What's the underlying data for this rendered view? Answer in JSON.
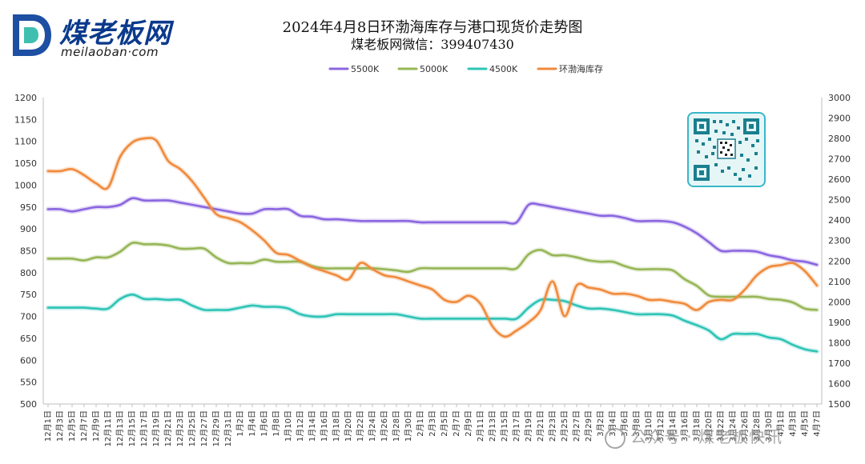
{
  "header": {
    "title": "2024年4月8日环渤海库存与港口现货价走势图",
    "subtitle": "煤老板网微信：399407430",
    "logo_text": "煤老板网",
    "logo_sub": "meilaoban·com"
  },
  "watermark": "公众号 · 煤老板快讯",
  "colors": {
    "s5500": "#8b66e0",
    "s5000": "#96b656",
    "s4500": "#2ec4b6",
    "stock": "#f08a3c"
  },
  "chart_data": {
    "type": "line",
    "title": "2024年4月8日环渤海库存与港口现货价走势图",
    "left_axis": {
      "min": 500,
      "max": 1200,
      "step": 50
    },
    "right_axis": {
      "min": 1500,
      "max": 3000,
      "step": 100
    },
    "legend_position": "top",
    "grid": false,
    "categories": [
      "12月1日",
      "12月3日",
      "12月5日",
      "12月7日",
      "12月9日",
      "12月11日",
      "12月13日",
      "12月15日",
      "12月17日",
      "12月19日",
      "12月21日",
      "12月23日",
      "12月25日",
      "12月27日",
      "12月29日",
      "12月31日",
      "1月2日",
      "1月4日",
      "1月6日",
      "1月8日",
      "1月10日",
      "1月12日",
      "1月14日",
      "1月16日",
      "1月18日",
      "1月20日",
      "1月22日",
      "1月24日",
      "1月26日",
      "1月28日",
      "1月30日",
      "2月1日",
      "2月3日",
      "2月5日",
      "2月7日",
      "2月9日",
      "2月11日",
      "2月13日",
      "2月15日",
      "2月17日",
      "2月19日",
      "2月21日",
      "2月23日",
      "2月25日",
      "2月27日",
      "2月29日",
      "3月2日",
      "3月4日",
      "3月6日",
      "3月8日",
      "3月10日",
      "3月12日",
      "3月14日",
      "3月16日",
      "3月18日",
      "3月20日",
      "3月22日",
      "3月24日",
      "3月26日",
      "3月28日",
      "3月30日",
      "4月1日",
      "4月3日",
      "4月5日",
      "4月7日"
    ],
    "series": [
      {
        "name": "5500K",
        "axis": "left",
        "key": "s5500",
        "values": [
          945,
          945,
          940,
          945,
          950,
          950,
          955,
          970,
          965,
          965,
          965,
          960,
          955,
          950,
          945,
          940,
          935,
          935,
          945,
          945,
          945,
          930,
          928,
          922,
          922,
          920,
          918,
          918,
          918,
          918,
          918,
          915,
          915,
          915,
          915,
          915,
          915,
          915,
          915,
          915,
          955,
          955,
          950,
          945,
          940,
          935,
          930,
          930,
          925,
          918,
          918,
          918,
          915,
          905,
          890,
          870,
          850,
          850,
          850,
          848,
          840,
          835,
          828,
          825,
          818
        ]
      },
      {
        "name": "5000K",
        "axis": "left",
        "key": "s5000",
        "values": [
          832,
          832,
          832,
          828,
          835,
          835,
          848,
          868,
          865,
          865,
          862,
          855,
          855,
          855,
          835,
          822,
          822,
          822,
          830,
          825,
          825,
          825,
          815,
          810,
          810,
          810,
          810,
          810,
          808,
          805,
          802,
          810,
          810,
          810,
          810,
          810,
          810,
          810,
          810,
          810,
          842,
          852,
          840,
          840,
          835,
          828,
          825,
          825,
          815,
          808,
          808,
          808,
          805,
          785,
          770,
          748,
          745,
          745,
          745,
          745,
          740,
          738,
          732,
          718,
          715
        ]
      },
      {
        "name": "4500K",
        "axis": "left",
        "key": "s4500",
        "values": [
          720,
          720,
          720,
          720,
          718,
          718,
          740,
          750,
          740,
          740,
          738,
          738,
          725,
          715,
          715,
          715,
          720,
          725,
          722,
          722,
          718,
          705,
          700,
          700,
          705,
          705,
          705,
          705,
          705,
          705,
          700,
          695,
          695,
          695,
          695,
          695,
          695,
          695,
          695,
          695,
          720,
          738,
          738,
          735,
          725,
          718,
          718,
          715,
          710,
          705,
          705,
          705,
          702,
          690,
          680,
          668,
          648,
          660,
          660,
          660,
          652,
          648,
          635,
          625,
          620
        ]
      },
      {
        "name": "环渤海库存",
        "axis": "right",
        "key": "stock",
        "values": [
          2640,
          2640,
          2650,
          2620,
          2580,
          2560,
          2710,
          2780,
          2800,
          2790,
          2690,
          2650,
          2590,
          2510,
          2430,
          2410,
          2390,
          2350,
          2300,
          2240,
          2230,
          2200,
          2170,
          2150,
          2130,
          2110,
          2190,
          2160,
          2130,
          2120,
          2100,
          2080,
          2060,
          2010,
          2000,
          2030,
          1990,
          1880,
          1830,
          1860,
          1900,
          1960,
          2100,
          1930,
          2080,
          2070,
          2060,
          2040,
          2040,
          2030,
          2010,
          2010,
          2000,
          1990,
          1960,
          2000,
          2010,
          2010,
          2060,
          2130,
          2170,
          2180,
          2190,
          2150,
          2080
        ]
      }
    ]
  }
}
